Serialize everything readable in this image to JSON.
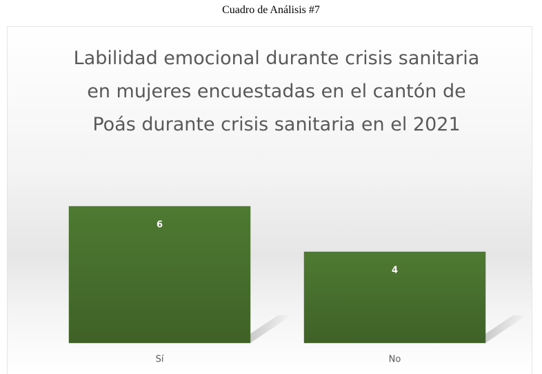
{
  "header": "Cuadro de Análisis #7",
  "chart_data": {
    "type": "bar",
    "title": "Labilidad emocional durante crisis sanitaria en mujeres encuestadas en el cantón de Poás durante crisis sanitaria en el 2021",
    "categories": [
      "Sí",
      "No"
    ],
    "values": [
      6,
      4
    ],
    "color": "#4a7130"
  }
}
